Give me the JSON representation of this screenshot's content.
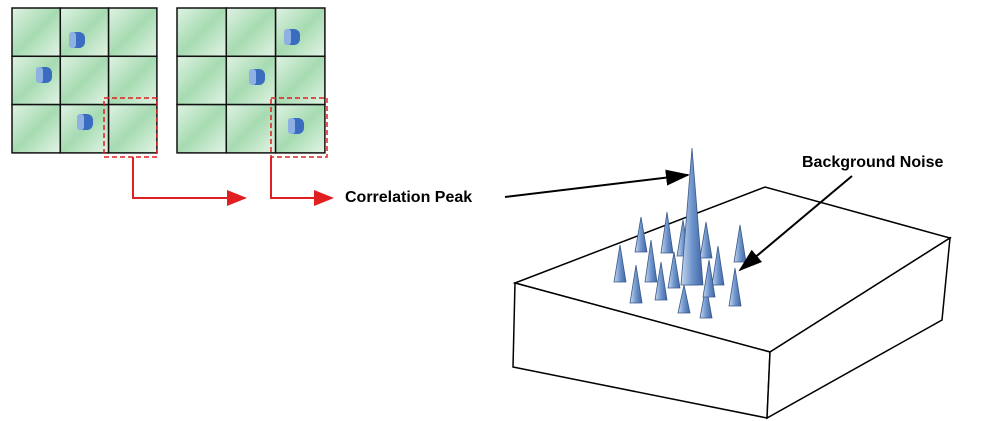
{
  "labels": {
    "correlation_peak": "Correlation Peak",
    "background_noise": "Background Noise"
  }
}
